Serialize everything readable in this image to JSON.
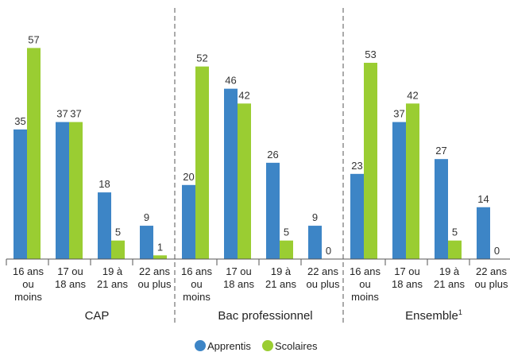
{
  "chart_data": {
    "type": "bar",
    "groups": [
      {
        "name": "CAP",
        "categories": [
          "16 ans ou moins",
          "17 ou 18 ans",
          "19 à 21 ans",
          "22 ans ou plus"
        ],
        "series": [
          {
            "name": "Apprentis",
            "values": [
              35,
              37,
              18,
              9
            ]
          },
          {
            "name": "Scolaires",
            "values": [
              57,
              37,
              5,
              1
            ]
          }
        ]
      },
      {
        "name": "Bac professionnel",
        "categories": [
          "16 ans ou moins",
          "17 ou 18 ans",
          "19 à 21 ans",
          "22 ans ou plus"
        ],
        "series": [
          {
            "name": "Apprentis",
            "values": [
              20,
              46,
              26,
              9
            ]
          },
          {
            "name": "Scolaires",
            "values": [
              52,
              42,
              5,
              0
            ]
          }
        ]
      },
      {
        "name": "Ensemble",
        "name_sup": "1",
        "categories": [
          "16 ans ou moins",
          "17 ou 18 ans",
          "19 à 21 ans",
          "22 ans ou plus"
        ],
        "series": [
          {
            "name": "Apprentis",
            "values": [
              23,
              37,
              27,
              14
            ]
          },
          {
            "name": "Scolaires",
            "values": [
              53,
              42,
              5,
              0
            ]
          }
        ]
      }
    ],
    "tick_lines": [
      [
        "16 ans",
        "ou",
        "moins"
      ],
      [
        "17 ou",
        "18 ans"
      ],
      [
        "19 à",
        "21 ans"
      ],
      [
        "22 ans",
        "ou plus"
      ]
    ],
    "colors": {
      "Apprentis": "#3d85c6",
      "Scolaires": "#9acd32"
    },
    "legend": [
      {
        "name": "Apprentis",
        "color": "#3d85c6"
      },
      {
        "name": "Scolaires",
        "color": "#9acd32"
      }
    ],
    "legend_position": "bottom-center",
    "ylim": [
      0,
      60
    ],
    "grid": false
  }
}
